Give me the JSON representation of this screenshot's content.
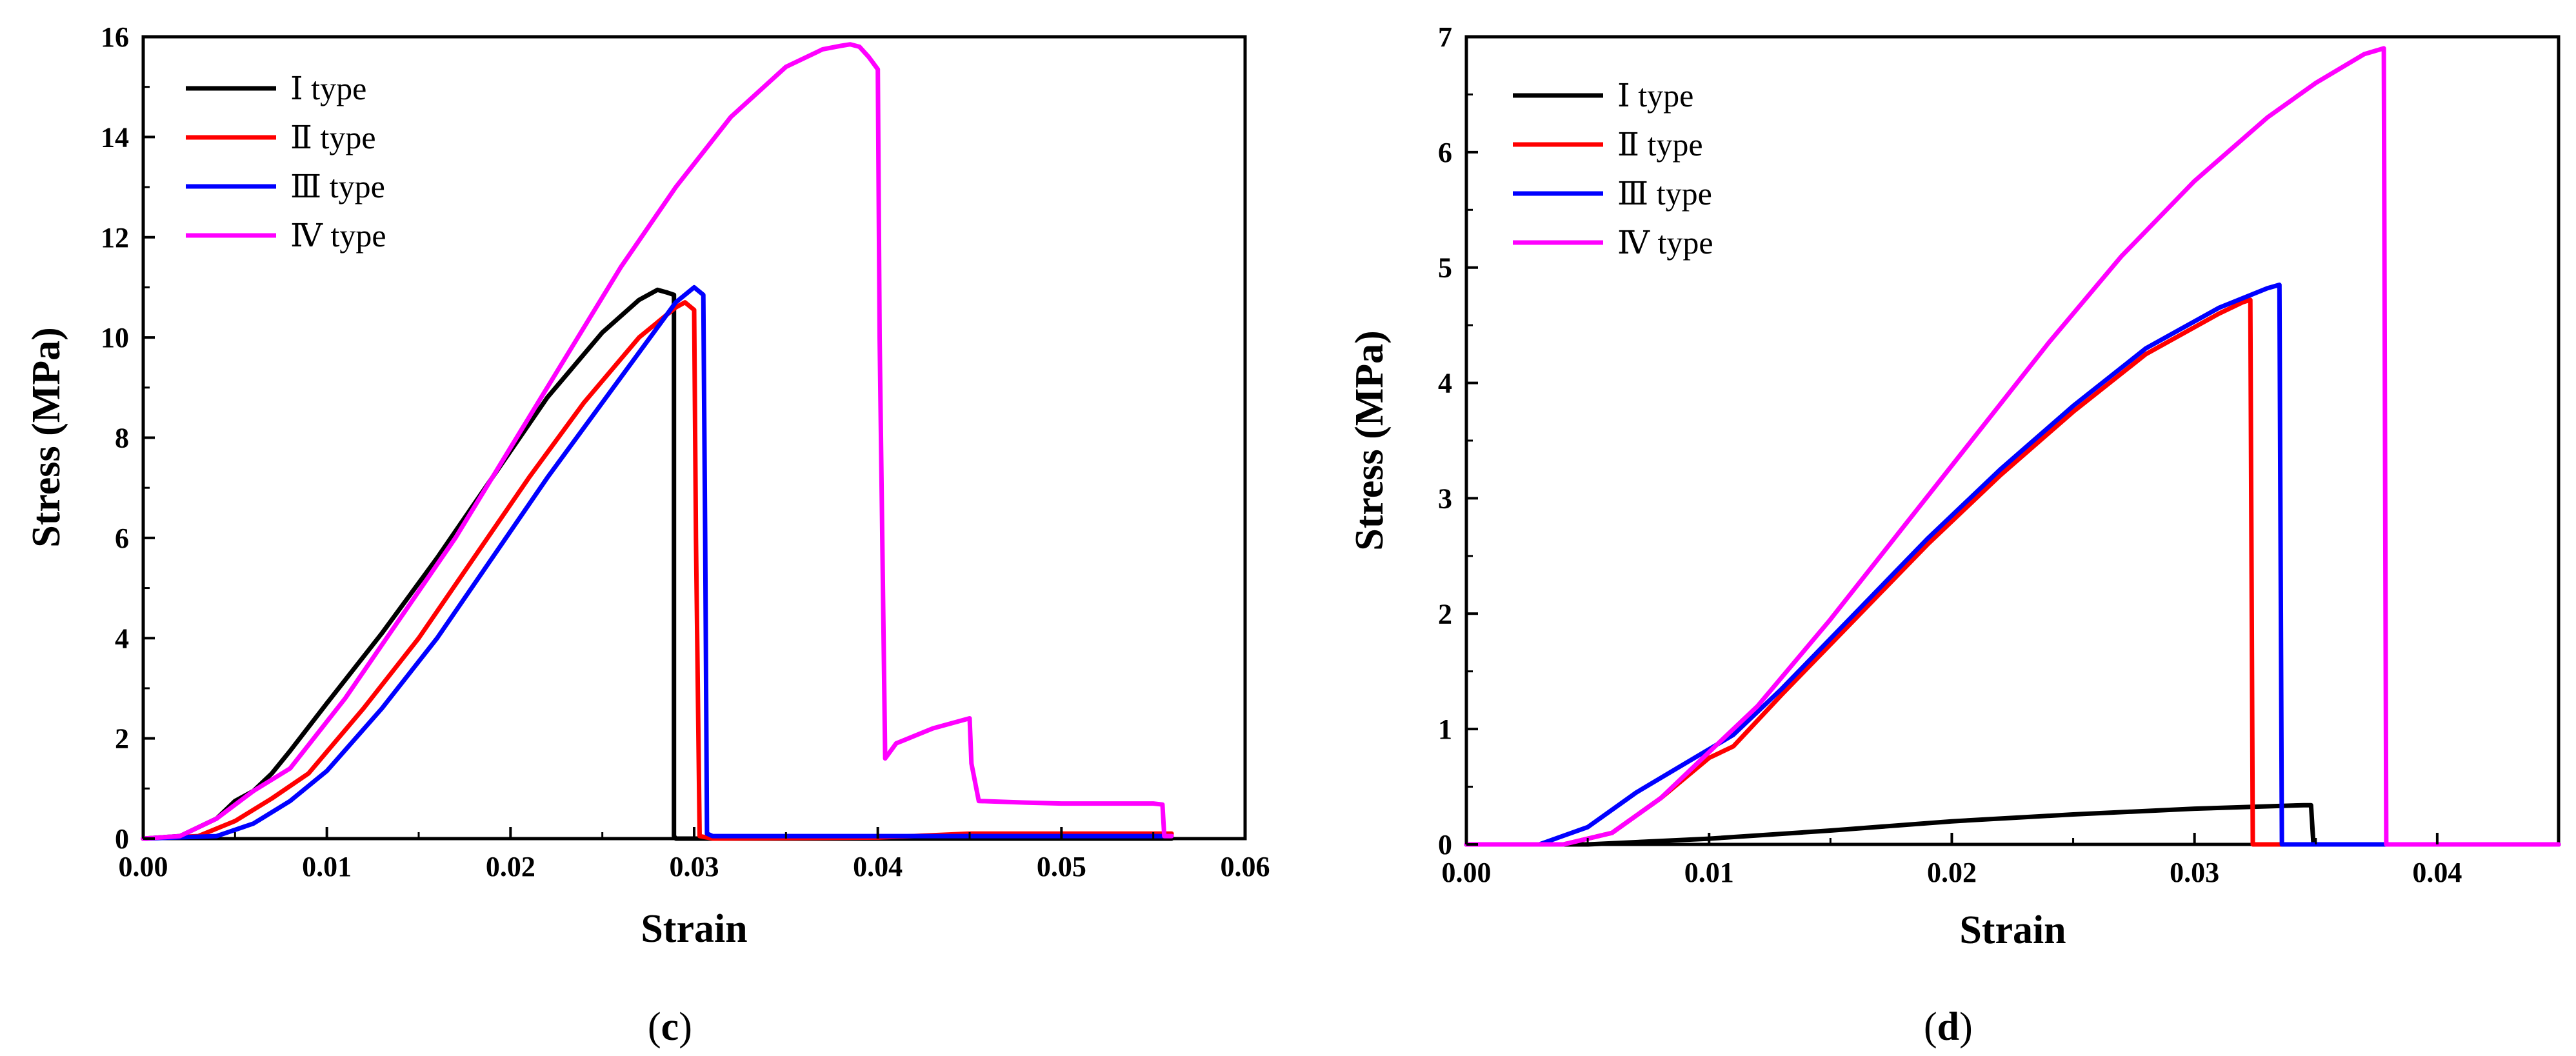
{
  "chart_data": [
    {
      "type": "line",
      "panel": "c",
      "caption": "(c)",
      "caption_letter": "c",
      "xlabel": "Strain",
      "ylabel": "Stress (MPa)",
      "xlim": [
        0,
        0.06
      ],
      "ylim": [
        0,
        16
      ],
      "xticks": [
        0,
        0.01,
        0.02,
        0.03,
        0.04,
        0.05,
        0.06
      ],
      "xtick_labels": [
        "0.00",
        "0.01",
        "0.02",
        "0.03",
        "0.04",
        "0.05",
        "0.06"
      ],
      "yticks": [
        0,
        2,
        4,
        6,
        8,
        10,
        12,
        14,
        16
      ],
      "ytick_labels": [
        "0",
        "2",
        "4",
        "6",
        "8",
        "10",
        "12",
        "14",
        "16"
      ],
      "legend_position": "top-left",
      "series": [
        {
          "name": "Ⅰ type",
          "color": "#000000",
          "x": [
            0.0,
            0.002,
            0.004,
            0.005,
            0.006,
            0.007,
            0.008,
            0.01,
            0.013,
            0.016,
            0.019,
            0.022,
            0.025,
            0.027,
            0.028,
            0.0285,
            0.0289,
            0.0289,
            0.029,
            0.03,
            0.04,
            0.056
          ],
          "y": [
            0.0,
            0.05,
            0.4,
            0.75,
            0.95,
            1.3,
            1.75,
            2.7,
            4.1,
            5.6,
            7.2,
            8.8,
            10.1,
            10.75,
            10.95,
            10.9,
            10.85,
            0.05,
            0.0,
            0.0,
            0.0,
            0.0
          ]
        },
        {
          "name": "Ⅱ type",
          "color": "#ff0000",
          "x": [
            0.0,
            0.003,
            0.005,
            0.007,
            0.009,
            0.012,
            0.015,
            0.018,
            0.021,
            0.024,
            0.027,
            0.029,
            0.0295,
            0.03,
            0.0301,
            0.0303,
            0.031,
            0.04,
            0.045,
            0.05,
            0.056
          ],
          "y": [
            0.0,
            0.05,
            0.35,
            0.8,
            1.3,
            2.6,
            4.0,
            5.6,
            7.2,
            8.7,
            10.0,
            10.6,
            10.7,
            10.55,
            6.0,
            0.05,
            0.0,
            0.02,
            0.1,
            0.1,
            0.1
          ]
        },
        {
          "name": "Ⅲ type",
          "color": "#0000ff",
          "x": [
            0.0,
            0.004,
            0.006,
            0.008,
            0.01,
            0.013,
            0.016,
            0.019,
            0.022,
            0.025,
            0.028,
            0.029,
            0.03,
            0.0305,
            0.0306,
            0.0307,
            0.031,
            0.04,
            0.056
          ],
          "y": [
            0.0,
            0.05,
            0.3,
            0.75,
            1.35,
            2.6,
            4.0,
            5.6,
            7.2,
            8.7,
            10.2,
            10.7,
            11.0,
            10.85,
            6.0,
            0.1,
            0.05,
            0.05,
            0.05
          ]
        },
        {
          "name": "Ⅳ type",
          "color": "#ff00ff",
          "x": [
            0.0,
            0.002,
            0.004,
            0.006,
            0.008,
            0.011,
            0.014,
            0.017,
            0.02,
            0.023,
            0.026,
            0.029,
            0.032,
            0.035,
            0.037,
            0.038,
            0.0385,
            0.039,
            0.0395,
            0.04,
            0.0401,
            0.0404,
            0.041,
            0.043,
            0.045,
            0.0451,
            0.0455,
            0.048,
            0.05,
            0.055,
            0.0555,
            0.0556,
            0.056
          ],
          "y": [
            0.0,
            0.05,
            0.4,
            0.95,
            1.4,
            2.8,
            4.4,
            6.0,
            7.8,
            9.6,
            11.4,
            13.0,
            14.4,
            15.4,
            15.75,
            15.82,
            15.85,
            15.8,
            15.6,
            15.35,
            10.0,
            1.6,
            1.9,
            2.2,
            2.4,
            1.5,
            0.75,
            0.72,
            0.7,
            0.7,
            0.68,
            0.05,
            0.05
          ]
        }
      ]
    },
    {
      "type": "line",
      "panel": "d",
      "caption": "(d)",
      "caption_letter": "d",
      "xlabel": "Strain",
      "ylabel": "Stress (MPa)",
      "xlim": [
        0,
        0.045
      ],
      "ylim": [
        0,
        7
      ],
      "xticks": [
        0,
        0.01,
        0.02,
        0.03,
        0.04
      ],
      "xtick_labels": [
        "0.00",
        "0.01",
        "0.02",
        "0.03",
        "0.04"
      ],
      "yticks": [
        0,
        1,
        2,
        3,
        4,
        5,
        6,
        7
      ],
      "ytick_labels": [
        "0",
        "1",
        "2",
        "3",
        "4",
        "5",
        "6",
        "7"
      ],
      "legend_position": "top-left",
      "series": [
        {
          "name": "Ⅰ type",
          "color": "#000000",
          "x": [
            0.0,
            0.005,
            0.01,
            0.015,
            0.02,
            0.025,
            0.03,
            0.0345,
            0.0348,
            0.0349,
            0.035,
            0.045
          ],
          "y": [
            0.0,
            0.0,
            0.05,
            0.12,
            0.2,
            0.26,
            0.31,
            0.34,
            0.34,
            0.0,
            0.0,
            0.0
          ]
        },
        {
          "name": "Ⅱ type",
          "color": "#ff0000",
          "x": [
            0.0,
            0.004,
            0.006,
            0.008,
            0.01,
            0.011,
            0.013,
            0.016,
            0.019,
            0.022,
            0.025,
            0.028,
            0.031,
            0.032,
            0.0323,
            0.0324,
            0.033,
            0.045
          ],
          "y": [
            0.0,
            0.0,
            0.1,
            0.4,
            0.75,
            0.85,
            1.3,
            1.95,
            2.6,
            3.2,
            3.75,
            4.25,
            4.6,
            4.7,
            4.72,
            0.0,
            0.0,
            0.0
          ]
        },
        {
          "name": "Ⅲ type",
          "color": "#0000ff",
          "x": [
            0.0,
            0.003,
            0.005,
            0.007,
            0.009,
            0.011,
            0.013,
            0.016,
            0.019,
            0.022,
            0.025,
            0.028,
            0.031,
            0.033,
            0.0335,
            0.0336,
            0.034,
            0.045
          ],
          "y": [
            0.0,
            0.0,
            0.15,
            0.45,
            0.7,
            0.95,
            1.35,
            2.0,
            2.65,
            3.25,
            3.8,
            4.3,
            4.65,
            4.82,
            4.85,
            0.0,
            0.0,
            0.0
          ]
        },
        {
          "name": "Ⅳ type",
          "color": "#ff00ff",
          "x": [
            0.0,
            0.004,
            0.006,
            0.008,
            0.01,
            0.012,
            0.015,
            0.018,
            0.021,
            0.024,
            0.027,
            0.03,
            0.033,
            0.035,
            0.037,
            0.0378,
            0.0379,
            0.038,
            0.045
          ],
          "y": [
            0.0,
            0.0,
            0.1,
            0.4,
            0.8,
            1.2,
            1.95,
            2.75,
            3.55,
            4.35,
            5.1,
            5.75,
            6.3,
            6.6,
            6.85,
            6.9,
            0.0,
            0.0,
            0.0
          ]
        }
      ]
    }
  ]
}
